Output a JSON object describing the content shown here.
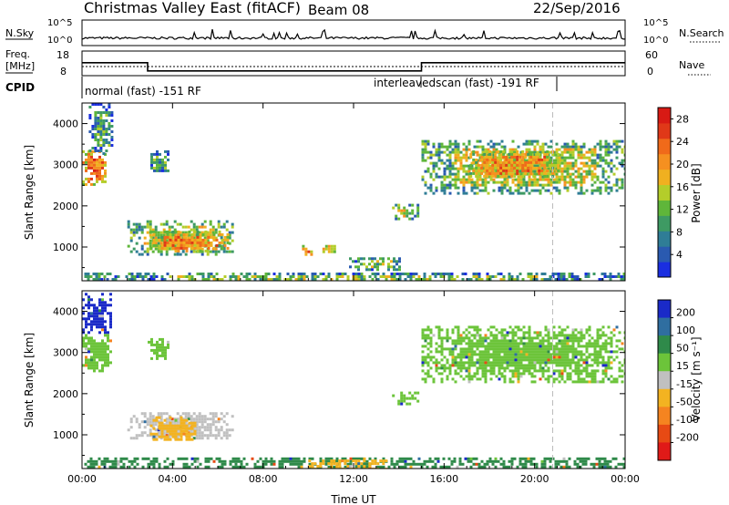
{
  "header": {
    "site": "Christmas Valley East (fitACF)",
    "beam": "Beam 08",
    "date": "22/Sep/2016"
  },
  "top_panels": {
    "nsky": {
      "label": "N.Sky",
      "tick_labels": [
        "10^5",
        "10^0"
      ],
      "right_label": "N.Search",
      "right_tick_labels": [
        "10^5",
        "10^0"
      ]
    },
    "freq": {
      "label_line1": "Freq.",
      "label_line2": "[MHz]",
      "tick_labels": [
        "18",
        "8"
      ],
      "right_label": "Nave",
      "right_tick_labels": [
        "60",
        "0"
      ],
      "freq_series": [
        {
          "t": 0.0,
          "f": 13.3
        },
        {
          "t": 2.9,
          "f": 13.3
        },
        {
          "t": 2.9,
          "f": 9.3
        },
        {
          "t": 15.0,
          "f": 9.3
        },
        {
          "t": 15.0,
          "f": 13.3
        },
        {
          "t": 24.0,
          "f": 13.3
        }
      ],
      "nave_series": [
        {
          "t": 0.0,
          "n": 24
        },
        {
          "t": 24.0,
          "n": 24
        }
      ]
    },
    "cpid": {
      "label": "CPID",
      "mode1": "normal (fast) -151 RF",
      "mode2": "interleavedscan (fast) -191 RF",
      "switch_times": [
        0.0,
        15.0,
        20.8
      ]
    }
  },
  "chart_data": [
    {
      "type": "heatmap",
      "name": "power",
      "ylabel": "Slant Range [km]",
      "xlabel": "",
      "x_range": [
        0,
        24
      ],
      "ylim": [
        180,
        4500
      ],
      "y_ticks": [
        1000,
        2000,
        3000,
        4000
      ],
      "x_ticks": [
        0,
        4,
        8,
        12,
        16,
        20,
        24
      ],
      "colorbar": {
        "label": "Power [dB]",
        "ticks": [
          "4",
          "8",
          "12",
          "16",
          "20",
          "24",
          "28"
        ],
        "range": [
          0,
          30
        ],
        "colors": [
          "#1a2ee0",
          "#2a5ab0",
          "#2f7d96",
          "#3e9a63",
          "#5fb63a",
          "#b4cd2a",
          "#f0b020",
          "#f59020",
          "#f06a1a",
          "#e03818",
          "#d81a14"
        ]
      },
      "regions": [
        {
          "t0": 0.0,
          "t1": 1.0,
          "r0": 2550,
          "r1": 3350,
          "value": 23
        },
        {
          "t0": 0.3,
          "t1": 1.3,
          "r0": 3300,
          "r1": 4500,
          "value": 9
        },
        {
          "t0": 2.9,
          "t1": 3.8,
          "r0": 2850,
          "r1": 3350,
          "value": 10
        },
        {
          "t0": 2.0,
          "t1": 6.6,
          "r0": 800,
          "r1": 1650,
          "value": 15
        },
        {
          "t0": 3.0,
          "t1": 6.5,
          "r0": 900,
          "r1": 1400,
          "value": 22
        },
        {
          "t0": 0.1,
          "t1": 24.0,
          "r0": 200,
          "r1": 380,
          "value": 12
        },
        {
          "t0": 9.6,
          "t1": 10.2,
          "r0": 850,
          "r1": 1050,
          "value": 22
        },
        {
          "t0": 10.5,
          "t1": 11.2,
          "r0": 900,
          "r1": 1050,
          "value": 20
        },
        {
          "t0": 11.8,
          "t1": 14.0,
          "r0": 450,
          "r1": 750,
          "value": 13
        },
        {
          "t0": 13.7,
          "t1": 14.8,
          "r0": 1700,
          "r1": 2050,
          "value": 15
        },
        {
          "t0": 15.0,
          "t1": 24.0,
          "r0": 2300,
          "r1": 3600,
          "value": 15
        },
        {
          "t0": 17.0,
          "t1": 21.0,
          "r0": 2700,
          "r1": 3350,
          "value": 21
        }
      ]
    },
    {
      "type": "heatmap",
      "name": "velocity",
      "ylabel": "Slant Range [km]",
      "xlabel": "Time UT",
      "x_range": [
        0,
        24
      ],
      "ylim": [
        180,
        4500
      ],
      "y_ticks": [
        1000,
        2000,
        3000,
        4000
      ],
      "x_ticks": [
        0,
        4,
        8,
        12,
        16,
        20,
        24
      ],
      "x_tick_labels": [
        "00:00",
        "04:00",
        "08:00",
        "12:00",
        "16:00",
        "20:00",
        "00:00"
      ],
      "colorbar": {
        "label": "Velocity [m s⁻¹]",
        "ticks": [
          "200",
          "100",
          "50",
          "15",
          "-15",
          "-50",
          "-100",
          "-200"
        ],
        "colors": [
          "#1a2ac8",
          "#2f6ea0",
          "#2f8a4a",
          "#6cc43a",
          "#c0c0c0",
          "#f3b321",
          "#f58420",
          "#e74a14",
          "#e01a18"
        ]
      },
      "regions": [
        {
          "t0": 0.0,
          "t1": 1.3,
          "r0": 3500,
          "r1": 4450,
          "value": "200"
        },
        {
          "t0": 0.0,
          "t1": 1.3,
          "r0": 2550,
          "r1": 3450,
          "value": "15"
        },
        {
          "t0": 2.9,
          "t1": 3.8,
          "r0": 2850,
          "r1": 3350,
          "value": "15"
        },
        {
          "t0": 2.0,
          "t1": 6.6,
          "r0": 900,
          "r1": 1550,
          "value": "-15"
        },
        {
          "t0": 3.0,
          "t1": 5.0,
          "r0": 900,
          "r1": 1450,
          "value": "-50"
        },
        {
          "t0": 0.1,
          "t1": 24.0,
          "r0": 200,
          "r1": 450,
          "value": "50"
        },
        {
          "t0": 10.0,
          "t1": 13.5,
          "r0": 200,
          "r1": 400,
          "value": "-50"
        },
        {
          "t0": 13.7,
          "t1": 14.8,
          "r0": 1750,
          "r1": 2050,
          "value": "15"
        },
        {
          "t0": 15.0,
          "t1": 24.0,
          "r0": 2300,
          "r1": 3650,
          "value": "15"
        }
      ]
    }
  ]
}
